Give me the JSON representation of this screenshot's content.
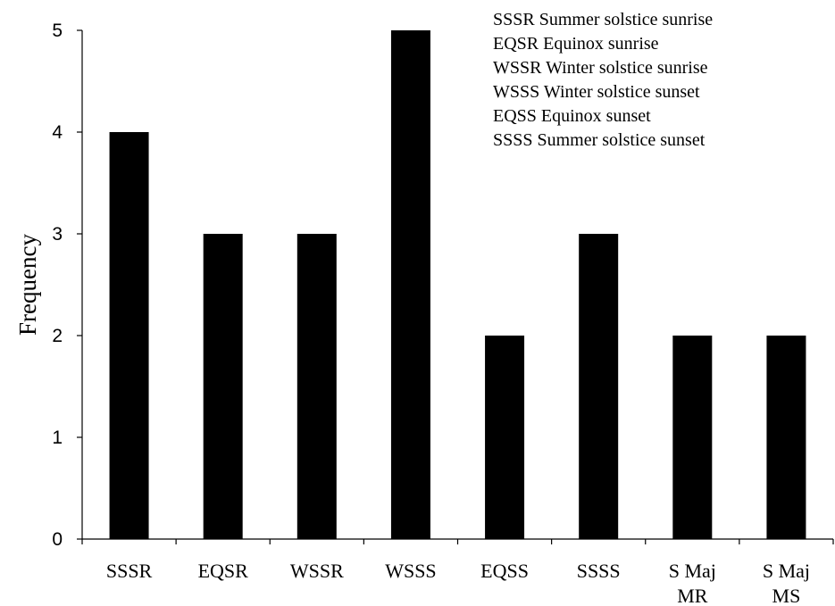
{
  "chart_data": {
    "type": "bar",
    "title": "",
    "xlabel": "",
    "ylabel": "Frequency",
    "ylim": [
      0,
      5
    ],
    "yticks": [
      0,
      1,
      2,
      3,
      4,
      5
    ],
    "grid": false,
    "legend_position": "top-right",
    "bar_color": "#000000",
    "categories": [
      [
        "SSSR"
      ],
      [
        "EQSR"
      ],
      [
        "WSSR"
      ],
      [
        "WSSS"
      ],
      [
        "EQSS"
      ],
      [
        "SSSS"
      ],
      [
        "S Maj",
        "MR"
      ],
      [
        "S Maj",
        "MS"
      ]
    ],
    "values": [
      4,
      3,
      3,
      5,
      2,
      3,
      2,
      2
    ],
    "legend": [
      "SSSR Summer solstice sunrise",
      "EQSR Equinox sunrise",
      "WSSR Winter solstice sunrise",
      "WSSS Winter solstice sunset",
      "EQSS Equinox sunset",
      "SSSS Summer solstice sunset"
    ]
  }
}
